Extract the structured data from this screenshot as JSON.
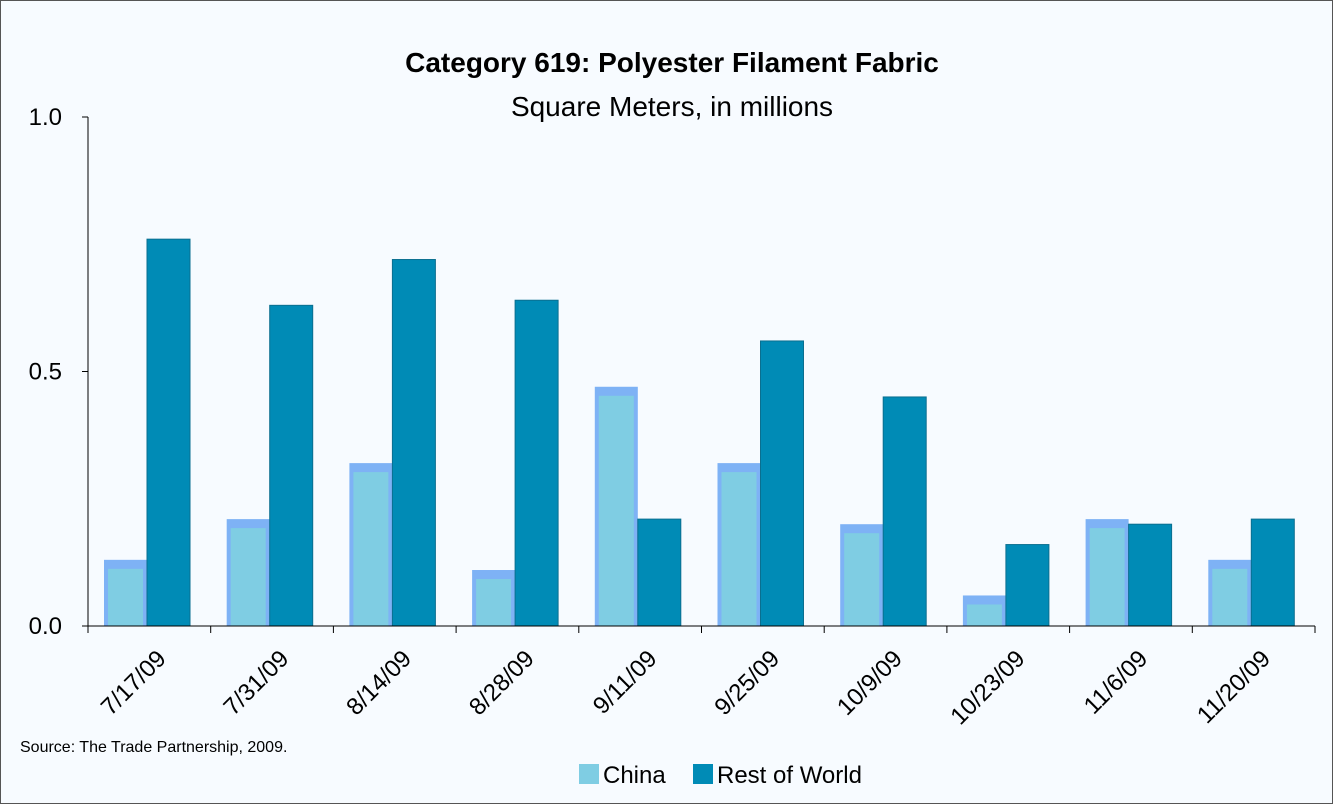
{
  "chart_data": {
    "type": "bar",
    "title": "Category 619: Polyester Filament Fabric",
    "subtitle": "Square Meters, in millions",
    "categories": [
      "7/17/09",
      "7/31/09",
      "8/14/09",
      "8/28/09",
      "9/11/09",
      "9/25/09",
      "10/9/09",
      "10/23/09",
      "11/6/09",
      "11/20/09"
    ],
    "series": [
      {
        "name": "China",
        "values": [
          0.13,
          0.21,
          0.32,
          0.11,
          0.47,
          0.32,
          0.2,
          0.06,
          0.21,
          0.13
        ],
        "color": "#7fcde3",
        "border_color": "#7eb2f5"
      },
      {
        "name": "Rest of World",
        "values": [
          0.76,
          0.63,
          0.72,
          0.64,
          0.21,
          0.56,
          0.45,
          0.16,
          0.2,
          0.21
        ],
        "color": "#008bb6"
      }
    ],
    "y_ticks": [
      "0.0",
      "0.5",
      "1.0"
    ],
    "ylim": [
      0,
      1.0
    ],
    "grid": false,
    "legend_position": "bottom-center",
    "source": "Source: The Trade Partnership, 2009."
  }
}
